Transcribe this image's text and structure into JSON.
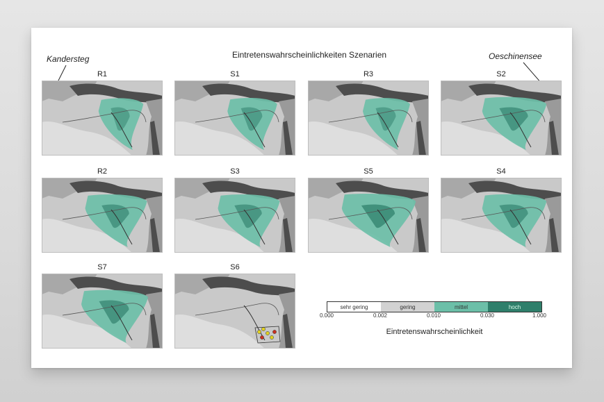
{
  "title": "Eintretenswahrscheinlichkeiten Szenarien",
  "callouts": {
    "left": "Kandersteg",
    "right": "Oeschinensee"
  },
  "colors": {
    "background_terrain": "#c9c9c9",
    "ridge": "#7a7a7a",
    "dark_ridge": "#4d4d4d",
    "class_colors": [
      "#ffffff",
      "#d2d2d2",
      "#6cbfa8",
      "#2f7f6b"
    ]
  },
  "panels": [
    {
      "id": "R1",
      "label": "R1",
      "intensity": 0.35,
      "points": false
    },
    {
      "id": "S1",
      "label": "S1",
      "intensity": 0.45,
      "points": false
    },
    {
      "id": "R3",
      "label": "R3",
      "intensity": 0.4,
      "points": false
    },
    {
      "id": "S2",
      "label": "S2",
      "intensity": 0.75,
      "points": false
    },
    {
      "id": "R2",
      "label": "R2",
      "intensity": 0.7,
      "points": false
    },
    {
      "id": "S3",
      "label": "S3",
      "intensity": 0.7,
      "points": false
    },
    {
      "id": "S5",
      "label": "S5",
      "intensity": 0.95,
      "points": false
    },
    {
      "id": "S4",
      "label": "S4",
      "intensity": 0.75,
      "points": false
    },
    {
      "id": "S7",
      "label": "S7",
      "intensity": 0.8,
      "points": false
    },
    {
      "id": "S6",
      "label": "S6",
      "intensity": 0.1,
      "points": true
    }
  ],
  "legend": {
    "classes": [
      "sehr gering",
      "gering",
      "mittel",
      "hoch"
    ],
    "ticks": [
      "0.000",
      "0.002",
      "0.010",
      "0.030",
      "1.000"
    ],
    "title": "Eintretenswahrscheinlichkeit"
  }
}
